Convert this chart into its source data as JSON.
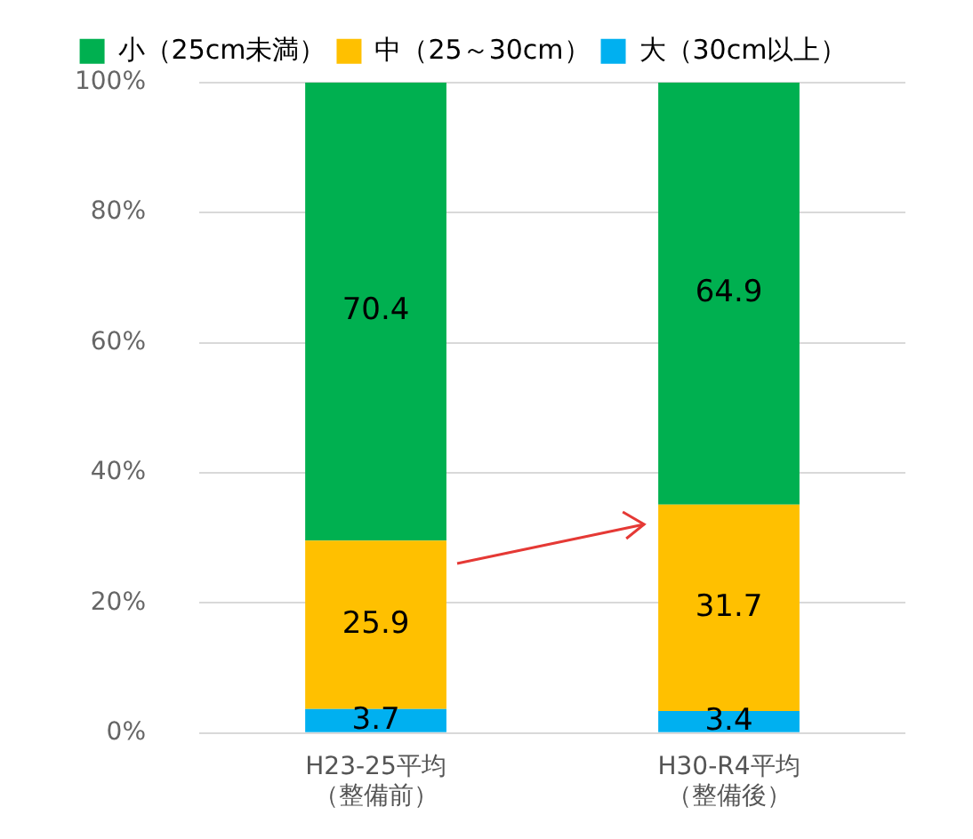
{
  "chart_data": {
    "type": "bar",
    "stacked": true,
    "categories": [
      "H23-25平均（整備前）",
      "H30-R4平均（整備後）"
    ],
    "series": [
      {
        "name": "大（30cm以上）",
        "color": "#00b0f0",
        "values": [
          3.7,
          3.4
        ]
      },
      {
        "name": "中（25～30cm）",
        "color": "#ffc000",
        "values": [
          25.9,
          31.7
        ]
      },
      {
        "name": "小（25cm未満）",
        "color": "#00b050",
        "values": [
          70.4,
          64.9
        ]
      }
    ],
    "ylim": [
      0,
      100
    ],
    "yticks": [
      {
        "value": 0,
        "label": "0%"
      },
      {
        "value": 20,
        "label": "20%"
      },
      {
        "value": 40,
        "label": "40%"
      },
      {
        "value": 60,
        "label": "60%"
      },
      {
        "value": 80,
        "label": "80%"
      },
      {
        "value": 100,
        "label": "100%"
      }
    ],
    "grid": "y",
    "legend": "top",
    "data_labels": true
  }
}
